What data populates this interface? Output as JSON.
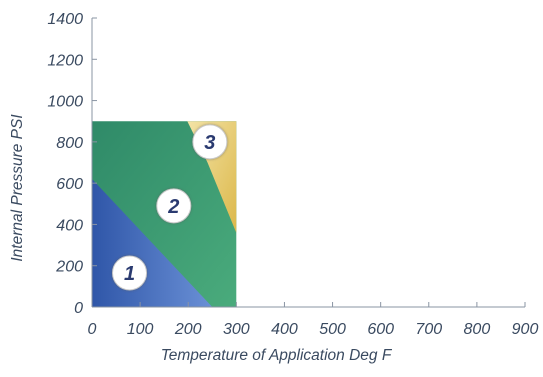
{
  "chart_data": {
    "type": "area",
    "title": "",
    "xlabel": "Temperature of Application Deg F",
    "ylabel": "Internal Pressure PSI",
    "xlim": [
      0,
      900
    ],
    "ylim": [
      0,
      1400
    ],
    "x_ticks": [
      "0",
      "100",
      "200",
      "300",
      "400",
      "500",
      "600",
      "700",
      "800",
      "900"
    ],
    "y_ticks": [
      "0",
      "200",
      "400",
      "600",
      "800",
      "1000",
      "1200",
      "1400"
    ],
    "grid": false,
    "regions": [
      {
        "label": "2",
        "color": "#3f9a72",
        "polygon": [
          [
            0,
            0
          ],
          [
            300,
            0
          ],
          [
            300,
            900
          ],
          [
            0,
            900
          ]
        ]
      },
      {
        "label": "3",
        "color": "#e2c25a",
        "polygon": [
          [
            198,
            900
          ],
          [
            300,
            900
          ],
          [
            300,
            360
          ],
          [
            240,
            700
          ]
        ]
      },
      {
        "label": "1",
        "color": "#3d63b3",
        "polygon": [
          [
            0,
            0
          ],
          [
            250,
            0
          ],
          [
            0,
            620
          ]
        ]
      }
    ],
    "badges": [
      {
        "label": "1",
        "x": 78,
        "y": 165
      },
      {
        "label": "2",
        "x": 170,
        "y": 490
      },
      {
        "label": "3",
        "x": 245,
        "y": 800
      }
    ]
  }
}
